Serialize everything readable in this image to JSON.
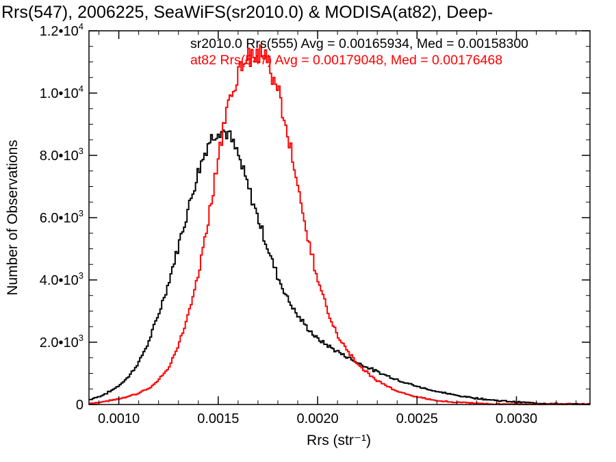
{
  "chart_data": {
    "type": "line",
    "style": "step histogram",
    "title": "Rrs(547), 2006225, SeaWiFS(sr2010.0) & MODISA(at82), Deep-",
    "xlabel": "Rrs (str⁻¹)",
    "ylabel": "Number of Observations",
    "xlim": [
      0.00085,
      0.00337
    ],
    "ylim": [
      0,
      12000
    ],
    "x_ticks": [
      {
        "value": 0.001,
        "label": "0.0010"
      },
      {
        "value": 0.0015,
        "label": "0.0015"
      },
      {
        "value": 0.002,
        "label": "0.0020"
      },
      {
        "value": 0.0025,
        "label": "0.0025"
      },
      {
        "value": 0.003,
        "label": "0.0030"
      }
    ],
    "y_ticks": [
      {
        "value": 0,
        "mant": "0",
        "exp": ""
      },
      {
        "value": 2000,
        "mant": "2.0•10",
        "exp": "3"
      },
      {
        "value": 4000,
        "mant": "4.0•10",
        "exp": "3"
      },
      {
        "value": 6000,
        "mant": "6.0•10",
        "exp": "3"
      },
      {
        "value": 8000,
        "mant": "8.0•10",
        "exp": "3"
      },
      {
        "value": 10000,
        "mant": "1.0•10",
        "exp": "4"
      },
      {
        "value": 12000,
        "mant": "1.2•10",
        "exp": "4"
      }
    ],
    "grid": false,
    "legend_position": "top-right",
    "series": [
      {
        "name": "sr2010.0 Rrs(555) Avg = 0.00165934, Med = 0.00158300",
        "color": "#000000",
        "x": [
          0.00085,
          0.0009,
          0.00095,
          0.001,
          0.00105,
          0.0011,
          0.00115,
          0.0012,
          0.00125,
          0.0013,
          0.00135,
          0.0014,
          0.00145,
          0.0015,
          0.00155,
          0.0016,
          0.00165,
          0.0017,
          0.00175,
          0.0018,
          0.00185,
          0.0019,
          0.00195,
          0.002,
          0.0021,
          0.0022,
          0.0023,
          0.0024,
          0.0025,
          0.0026,
          0.0027,
          0.0028,
          0.0029,
          0.003,
          0.0031,
          0.0032,
          0.0033,
          0.00337
        ],
        "y": [
          150,
          250,
          400,
          600,
          900,
          1350,
          2000,
          2900,
          3900,
          5100,
          6300,
          7500,
          8400,
          8850,
          8700,
          8000,
          7000,
          6000,
          5000,
          4100,
          3400,
          2850,
          2450,
          2100,
          1700,
          1350,
          1050,
          800,
          580,
          420,
          290,
          200,
          130,
          80,
          45,
          25,
          12,
          8
        ]
      },
      {
        "name": "at82 Rrs(547) Avg = 0.00179048, Med = 0.00176468",
        "color": "#ff0000",
        "x": [
          0.00085,
          0.0009,
          0.00095,
          0.001,
          0.00105,
          0.0011,
          0.00115,
          0.0012,
          0.00125,
          0.0013,
          0.00135,
          0.0014,
          0.00145,
          0.0015,
          0.00155,
          0.0016,
          0.00165,
          0.0017,
          0.00175,
          0.0018,
          0.00185,
          0.0019,
          0.00195,
          0.002,
          0.00205,
          0.0021,
          0.0022,
          0.0023,
          0.0024,
          0.0025,
          0.0026,
          0.0027,
          0.0028,
          0.0029,
          0.003,
          0.0031,
          0.0032,
          0.0033,
          0.00337
        ],
        "y": [
          20,
          60,
          120,
          180,
          260,
          360,
          520,
          780,
          1200,
          1900,
          2900,
          4200,
          5900,
          7900,
          9600,
          10700,
          11150,
          11300,
          11000,
          10100,
          8700,
          7000,
          5400,
          4000,
          3000,
          2200,
          1300,
          750,
          430,
          240,
          130,
          70,
          35,
          18,
          10,
          5,
          3,
          2,
          1
        ]
      }
    ]
  }
}
